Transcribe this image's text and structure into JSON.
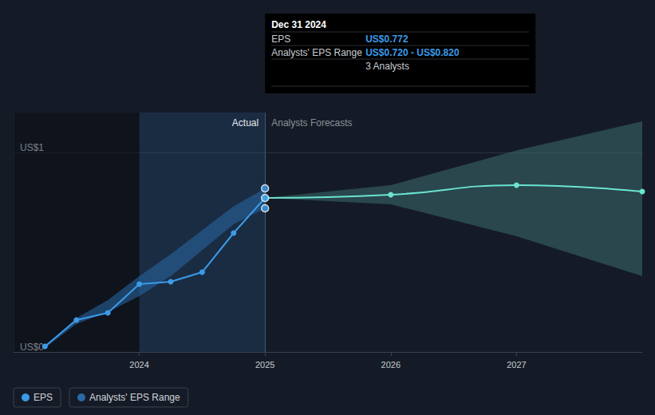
{
  "chart_data": {
    "type": "line",
    "xlim": [
      2023,
      2028
    ],
    "xticks": [
      2024,
      2025,
      2026,
      2027
    ],
    "ylim": [
      0,
      1.2
    ],
    "yticks": [
      {
        "value": 0,
        "label": "US$0"
      },
      {
        "value": 1,
        "label": "US$1"
      }
    ],
    "grid": true,
    "series": [
      {
        "name": "EPS",
        "color": "#3b9be8",
        "marker": "circle",
        "line_style": "solid",
        "x": [
          2023.25,
          2023.5,
          2023.75,
          2024,
          2024.25,
          2024.5,
          2024.75,
          2025
        ],
        "values": [
          0.028,
          0.16,
          0.196,
          0.34,
          0.352,
          0.4,
          0.596,
          0.772
        ]
      },
      {
        "name": "EPS",
        "color": "#6be3d1",
        "marker": "circle",
        "line_style": "solid",
        "x": [
          2025,
          2026,
          2027,
          2028
        ],
        "values": [
          0.772,
          0.788,
          0.836,
          0.804
        ]
      }
    ],
    "ranges": [
      {
        "name": "Analysts' EPS Range",
        "color": "#2a6aa8",
        "x": [
          2023.25,
          2023.5,
          2023.75,
          2024,
          2024.25,
          2024.5,
          2024.75,
          2025
        ],
        "lower": [
          0.02,
          0.14,
          0.2,
          0.28,
          0.38,
          0.51,
          0.64,
          0.72
        ],
        "upper": [
          0.03,
          0.17,
          0.26,
          0.38,
          0.49,
          0.61,
          0.73,
          0.82
        ]
      },
      {
        "name": "Analysts' EPS Range",
        "color": "#3a6b6b",
        "x": [
          2025,
          2026,
          2027,
          2028
        ],
        "lower": [
          0.772,
          0.74,
          0.58,
          0.38
        ],
        "upper": [
          0.772,
          0.836,
          1.01,
          1.156
        ]
      }
    ],
    "highlight": [
      2024,
      2025
    ],
    "forecast_start": 2025,
    "annotations": [
      {
        "text": "Actual"
      },
      {
        "text": "Analysts Forecasts"
      }
    ],
    "tooltip": {
      "x": 2025,
      "date": "Dec 31 2024",
      "rows": [
        {
          "label": "EPS",
          "value": "US$0.772"
        },
        {
          "label": "Analysts' EPS Range",
          "value": "US$0.720 - US$0.820"
        },
        {
          "value": "3 Analysts"
        }
      ]
    }
  }
}
